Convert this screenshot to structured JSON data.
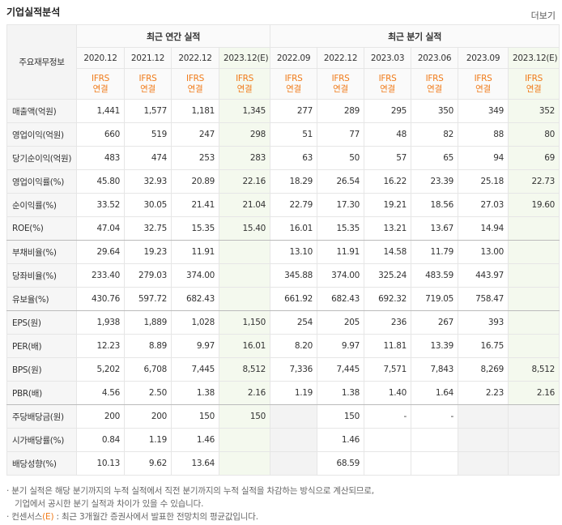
{
  "header": {
    "title": "기업실적분석",
    "more": "더보기"
  },
  "table": {
    "corner": "주요재무정보",
    "groups": [
      "최근 연간 실적",
      "최근 분기 실적"
    ],
    "periods": [
      "2020.12",
      "2021.12",
      "2022.12",
      "2023.12(E)",
      "2022.09",
      "2022.12",
      "2023.03",
      "2023.06",
      "2023.09",
      "2023.12(E)"
    ],
    "basis": [
      [
        "IFRS",
        "연결"
      ],
      [
        "IFRS",
        "연결"
      ],
      [
        "IFRS",
        "연결"
      ],
      [
        "IFRS",
        "연결"
      ],
      [
        "IFRS",
        "연결"
      ],
      [
        "IFRS",
        "연결"
      ],
      [
        "IFRS",
        "연결"
      ],
      [
        "IFRS",
        "연결"
      ],
      [
        "IFRS",
        "연결"
      ],
      [
        "IFRS",
        "연결"
      ]
    ],
    "rows": [
      [
        "매출액(억원)",
        "1,441",
        "1,577",
        "1,181",
        "1,345",
        "277",
        "289",
        "295",
        "350",
        "349",
        "352"
      ],
      [
        "영업이익(억원)",
        "660",
        "519",
        "247",
        "298",
        "51",
        "77",
        "48",
        "82",
        "88",
        "80"
      ],
      [
        "당기순이익(억원)",
        "483",
        "474",
        "253",
        "283",
        "63",
        "50",
        "57",
        "65",
        "94",
        "69"
      ],
      [
        "영업이익률(%)",
        "45.80",
        "32.93",
        "20.89",
        "22.16",
        "18.29",
        "26.54",
        "16.22",
        "23.39",
        "25.18",
        "22.73"
      ],
      [
        "순이익률(%)",
        "33.52",
        "30.05",
        "21.41",
        "21.04",
        "22.79",
        "17.30",
        "19.21",
        "18.56",
        "27.03",
        "19.60"
      ],
      [
        "ROE(%)",
        "47.04",
        "32.75",
        "15.35",
        "15.40",
        "16.01",
        "15.35",
        "13.21",
        "13.67",
        "14.94",
        null
      ],
      [
        "부채비율(%)",
        "29.64",
        "19.23",
        "11.91",
        null,
        "13.10",
        "11.91",
        "14.58",
        "11.79",
        "13.00",
        null
      ],
      [
        "당좌비율(%)",
        "233.40",
        "279.03",
        "374.00",
        null,
        "345.88",
        "374.00",
        "325.24",
        "483.59",
        "443.97",
        null
      ],
      [
        "유보율(%)",
        "430.76",
        "597.72",
        "682.43",
        null,
        "661.92",
        "682.43",
        "692.32",
        "719.05",
        "758.47",
        null
      ],
      [
        "EPS(원)",
        "1,938",
        "1,889",
        "1,028",
        "1,150",
        "254",
        "205",
        "236",
        "267",
        "393",
        null
      ],
      [
        "PER(배)",
        "12.23",
        "8.89",
        "9.97",
        "16.01",
        "8.20",
        "9.97",
        "11.81",
        "13.39",
        "16.75",
        null
      ],
      [
        "BPS(원)",
        "5,202",
        "6,708",
        "7,445",
        "8,512",
        "7,336",
        "7,445",
        "7,571",
        "7,843",
        "8,269",
        "8,512"
      ],
      [
        "PBR(배)",
        "4.56",
        "2.50",
        "1.38",
        "2.16",
        "1.19",
        "1.38",
        "1.40",
        "1.64",
        "2.23",
        "2.16"
      ],
      [
        "주당배당금(원)",
        "200",
        "200",
        "150",
        "150",
        null,
        "150",
        "-",
        "-",
        null,
        null
      ],
      [
        "시가배당률(%)",
        "0.84",
        "1.19",
        "1.46",
        null,
        null,
        "1.46",
        null,
        null,
        null,
        null
      ],
      [
        "배당성향(%)",
        "10.13",
        "9.62",
        "13.64",
        null,
        null,
        "68.59",
        null,
        null,
        null,
        null
      ]
    ]
  },
  "notes": [
    "· 분기 실적은 해당 분기까지의 누적 실적에서 직전 분기까지의 누적 실적을 차감하는 방식으로 계산되므로,",
    "기업에서 공시한 분기 실적과 차이가 있을 수 있습니다."
  ],
  "consensus": {
    "prefix": "· 컨센서스",
    "mark": "(E)",
    "suffix": " : 최근 3개월간 증권사에서 발표한 전망치의 평균값입니다."
  }
}
